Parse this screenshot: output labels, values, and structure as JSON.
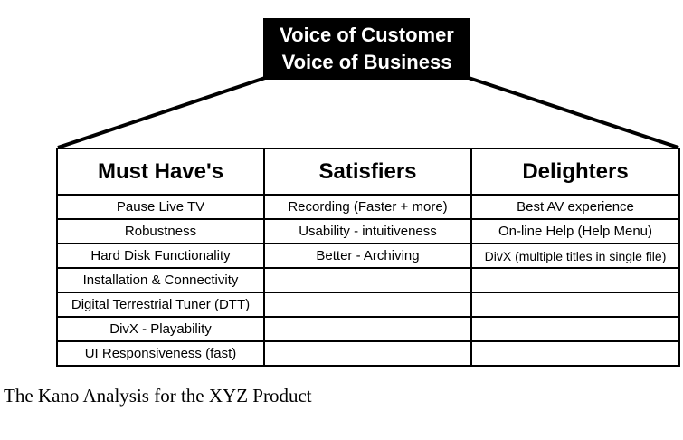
{
  "title": {
    "line1": "Voice of Customer",
    "line2": "Voice of Business"
  },
  "columns": [
    {
      "header": "Must Have's",
      "items": [
        "Pause Live TV",
        "Robustness",
        "Hard Disk Functionality",
        "Installation & Connectivity",
        "Digital Terrestrial Tuner (DTT)",
        "DivX - Playability",
        "UI Responsiveness (fast)"
      ]
    },
    {
      "header": "Satisfiers",
      "items": [
        "Recording (Faster + more)",
        "Usability - intuitiveness",
        "Better - Archiving",
        "",
        "",
        "",
        ""
      ]
    },
    {
      "header": "Delighters",
      "items": [
        "Best AV experience",
        "On-line Help (Help Menu)",
        "DivX (multiple titles in single file)",
        "",
        "",
        "",
        ""
      ]
    }
  ],
  "caption": "The Kano Analysis for the XYZ Product"
}
